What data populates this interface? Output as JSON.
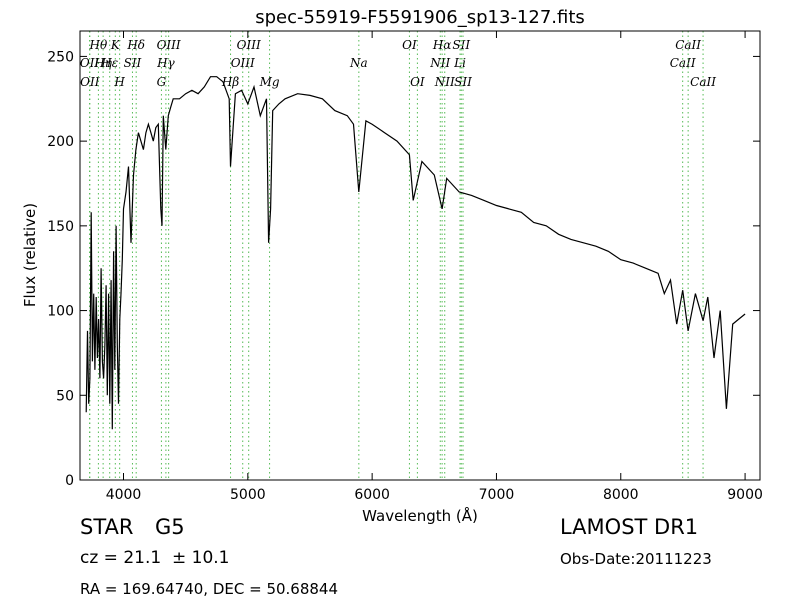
{
  "chart_data": {
    "type": "line",
    "title": "spec-55919-F5591906_sp13-127.fits",
    "xlabel": "Wavelength (Å)",
    "ylabel": "Flux (relative)",
    "xlim": [
      3650,
      9120
    ],
    "ylim": [
      0,
      265
    ],
    "xticks": [
      4000,
      5000,
      6000,
      7000,
      8000,
      9000
    ],
    "yticks": [
      0,
      50,
      100,
      150,
      200,
      250
    ],
    "grid": false,
    "series": [
      {
        "color": "#000000",
        "x": [
          3700,
          3710,
          3720,
          3730,
          3740,
          3750,
          3760,
          3770,
          3780,
          3790,
          3800,
          3810,
          3820,
          3830,
          3840,
          3850,
          3860,
          3870,
          3880,
          3890,
          3900,
          3910,
          3920,
          3930,
          3940,
          3950,
          3960,
          3970,
          3980,
          3990,
          4000,
          4020,
          4040,
          4060,
          4080,
          4100,
          4120,
          4140,
          4160,
          4180,
          4200,
          4220,
          4240,
          4260,
          4280,
          4300,
          4310,
          4320,
          4340,
          4360,
          4380,
          4400,
          4450,
          4500,
          4550,
          4600,
          4650,
          4700,
          4750,
          4800,
          4850,
          4861,
          4900,
          4950,
          5000,
          5050,
          5100,
          5150,
          5167,
          5183,
          5200,
          5250,
          5300,
          5400,
          5500,
          5600,
          5700,
          5800,
          5850,
          5893,
          5950,
          6000,
          6100,
          6200,
          6300,
          6330,
          6400,
          6500,
          6563,
          6600,
          6700,
          6800,
          6900,
          7000,
          7100,
          7200,
          7300,
          7400,
          7500,
          7600,
          7700,
          7800,
          7900,
          8000,
          8100,
          8200,
          8300,
          8350,
          8400,
          8450,
          8498,
          8542,
          8600,
          8662,
          8700,
          8750,
          8800,
          8850,
          8900,
          8950,
          9000
        ],
        "values": [
          40,
          88,
          45,
          60,
          158,
          70,
          110,
          65,
          108,
          72,
          95,
          60,
          125,
          70,
          60,
          80,
          115,
          50,
          110,
          45,
          118,
          30,
          135,
          65,
          150,
          80,
          45,
          95,
          110,
          130,
          160,
          170,
          185,
          140,
          180,
          195,
          205,
          200,
          195,
          205,
          210,
          205,
          200,
          208,
          210,
          160,
          150,
          215,
          195,
          215,
          220,
          225,
          225,
          228,
          230,
          228,
          232,
          238,
          238,
          235,
          225,
          185,
          228,
          230,
          222,
          232,
          215,
          225,
          140,
          160,
          218,
          222,
          225,
          228,
          227,
          225,
          218,
          215,
          210,
          170,
          212,
          210,
          205,
          200,
          192,
          165,
          188,
          180,
          160,
          178,
          170,
          168,
          165,
          162,
          160,
          158,
          152,
          150,
          145,
          142,
          140,
          138,
          135,
          130,
          128,
          125,
          122,
          110,
          118,
          92,
          112,
          88,
          110,
          94,
          108,
          72,
          100,
          42,
          92,
          95,
          98
        ]
      }
    ],
    "line_markers": [
      {
        "x": 3727,
        "label": "OII",
        "row": 1
      },
      {
        "x": 3729,
        "label": "OII",
        "row": 2
      },
      {
        "x": 3798,
        "label": "Hθ",
        "row": 0
      },
      {
        "x": 3836,
        "label": "Hη",
        "row": 1
      },
      {
        "x": 3889,
        "label": "Hε",
        "row": 1
      },
      {
        "x": 3934,
        "label": "K",
        "row": 0
      },
      {
        "x": 3969,
        "label": "H",
        "row": 2
      },
      {
        "x": 4072,
        "label": "SII",
        "row": 1
      },
      {
        "x": 4102,
        "label": "Hδ",
        "row": 0
      },
      {
        "x": 4305,
        "label": "G",
        "row": 2
      },
      {
        "x": 4341,
        "label": "Hγ",
        "row": 1
      },
      {
        "x": 4363,
        "label": "OIII",
        "row": 0
      },
      {
        "x": 4861,
        "label": "Hβ",
        "row": 2
      },
      {
        "x": 4959,
        "label": "OIII",
        "row": 1
      },
      {
        "x": 5007,
        "label": "OIII",
        "row": 0
      },
      {
        "x": 5175,
        "label": "Mg",
        "row": 2
      },
      {
        "x": 5893,
        "label": "Na",
        "row": 1
      },
      {
        "x": 6300,
        "label": "OI",
        "row": 0
      },
      {
        "x": 6364,
        "label": "OI",
        "row": 2
      },
      {
        "x": 6548,
        "label": "NII",
        "row": 1
      },
      {
        "x": 6563,
        "label": "Hα",
        "row": 0
      },
      {
        "x": 6584,
        "label": "NII",
        "row": 2
      },
      {
        "x": 6707,
        "label": "Li",
        "row": 1
      },
      {
        "x": 6717,
        "label": "SII",
        "row": 0
      },
      {
        "x": 6731,
        "label": "SII",
        "row": 2
      },
      {
        "x": 8498,
        "label": "CaII",
        "row": 1
      },
      {
        "x": 8542,
        "label": "CaII",
        "row": 0
      },
      {
        "x": 8662,
        "label": "CaII",
        "row": 2
      }
    ],
    "marker_color": "#55bb55"
  },
  "info": {
    "object_class": "STAR",
    "subclass": "G5",
    "survey": "LAMOST DR1",
    "redshift": "cz = 21.1  ± 10.1",
    "obs_date": "Obs-Date:20111223",
    "coords": "RA = 169.64740, DEC = 50.68844"
  }
}
